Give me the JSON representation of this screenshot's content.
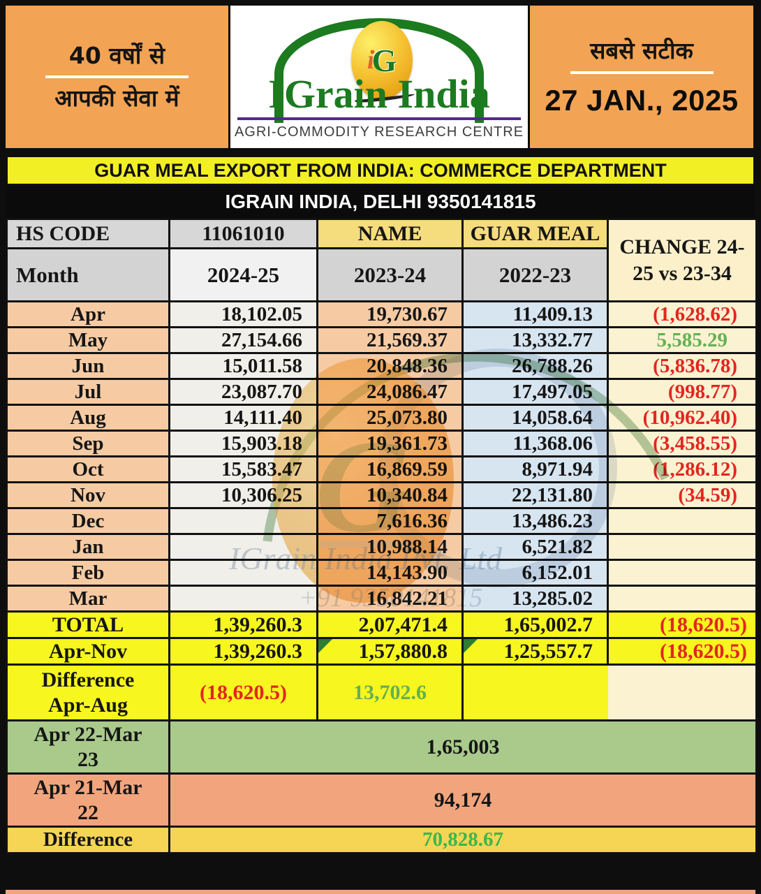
{
  "header": {
    "left": {
      "line1": "40 वर्षों से",
      "line2": "आपकी सेवा में"
    },
    "logo": {
      "brand": "IGrain India",
      "monogram_i": "i",
      "monogram_g": "G",
      "caption": "AGRI-COMMODITY RESEARCH CENTRE"
    },
    "right": {
      "line1": "सबसे सटीक",
      "date": "27 JAN., 2025"
    }
  },
  "titles": {
    "main": "GUAR MEAL EXPORT FROM INDIA: COMMERCE DEPARTMENT",
    "contact": "IGRAIN INDIA, DELHI 9350141815"
  },
  "table": {
    "header_row1": {
      "hs_code_label": "HS CODE",
      "hs_code_value": "11061010",
      "name_label": "NAME",
      "name_value": "GUAR MEAL",
      "change_label": "CHANGE 24-25 vs 23-34"
    },
    "header_row2": {
      "month_label": "Month",
      "col1": "2024-25",
      "col2": "2023-24",
      "col3": "2022-23"
    },
    "months": [
      {
        "month": "Apr",
        "y2425": "18,102.05",
        "y2324": "19,730.67",
        "y2223": "11,409.13",
        "change": "(1,628.62)",
        "change_type": "neg"
      },
      {
        "month": "May",
        "y2425": "27,154.66",
        "y2324": "21,569.37",
        "y2223": "13,332.77",
        "change": "5,585.29",
        "change_type": "pos"
      },
      {
        "month": "Jun",
        "y2425": "15,011.58",
        "y2324": "20,848.36",
        "y2223": "26,788.26",
        "change": "(5,836.78)",
        "change_type": "neg"
      },
      {
        "month": "Jul",
        "y2425": "23,087.70",
        "y2324": "24,086.47",
        "y2223": "17,497.05",
        "change": "(998.77)",
        "change_type": "neg"
      },
      {
        "month": "Aug",
        "y2425": "14,111.40",
        "y2324": "25,073.80",
        "y2223": "14,058.64",
        "change": "(10,962.40)",
        "change_type": "neg"
      },
      {
        "month": "Sep",
        "y2425": "15,903.18",
        "y2324": "19,361.73",
        "y2223": "11,368.06",
        "change": "(3,458.55)",
        "change_type": "neg"
      },
      {
        "month": "Oct",
        "y2425": "15,583.47",
        "y2324": "16,869.59",
        "y2223": "8,971.94",
        "change": "(1,286.12)",
        "change_type": "neg"
      },
      {
        "month": "Nov",
        "y2425": "10,306.25",
        "y2324": "10,340.84",
        "y2223": "22,131.80",
        "change": "(34.59)",
        "change_type": "neg"
      },
      {
        "month": "Dec",
        "y2425": "",
        "y2324": "7,616.36",
        "y2223": "13,486.23",
        "change": "",
        "change_type": "none"
      },
      {
        "month": "Jan",
        "y2425": "",
        "y2324": "10,988.14",
        "y2223": "6,521.82",
        "change": "",
        "change_type": "none"
      },
      {
        "month": "Feb",
        "y2425": "",
        "y2324": "14,143.90",
        "y2223": "6,152.01",
        "change": "",
        "change_type": "none"
      },
      {
        "month": "Mar",
        "y2425": "",
        "y2324": "16,842.21",
        "y2223": "13,285.02",
        "change": "",
        "change_type": "none"
      }
    ],
    "totals": [
      {
        "label": "TOTAL",
        "y2425": "1,39,260.3",
        "y2324": "2,07,471.4",
        "y2223": "1,65,002.7",
        "change": "(18,620.5)",
        "markers": false
      },
      {
        "label": "Apr-Nov",
        "y2425": "1,39,260.3",
        "y2324": "1,57,880.8",
        "y2223": "1,25,557.7",
        "change": "(18,620.5)",
        "markers": true
      }
    ],
    "difference_row": {
      "label": "Difference Apr-Aug",
      "v1": "(18,620.5)",
      "v2": "13,702.6"
    },
    "summary_rows": [
      {
        "label": "Apr 22-Mar 23",
        "value": "1,65,003"
      },
      {
        "label": "Apr 21-Mar 22",
        "value": "94,174"
      },
      {
        "label": "Difference",
        "value": "70,828.67"
      }
    ]
  },
  "watermark": {
    "monogram": "G",
    "line1": "IGrain India Pvt. Ltd",
    "line2": "+91 9350141815"
  },
  "colors": {
    "banner_orange": "#F2A354",
    "title_yellow": "#F2EF25",
    "band_black": "#0b0b0b",
    "brand_green": "#1c7a1f",
    "brand_purple": "#55298b",
    "col_peach": "#F6CBA4",
    "col_gray": "#F0EFEA",
    "col_blue": "#D7E5F1",
    "col_cream": "#FBF2D2",
    "total_yellow": "#F7F61E",
    "summary_green": "#A9CA8B",
    "summary_salmon": "#F2A57D",
    "summary_gold": "#F7D554",
    "negative_red": "#E2261F",
    "positive_green": "#64B054",
    "difference_green": "#3BB64E"
  }
}
